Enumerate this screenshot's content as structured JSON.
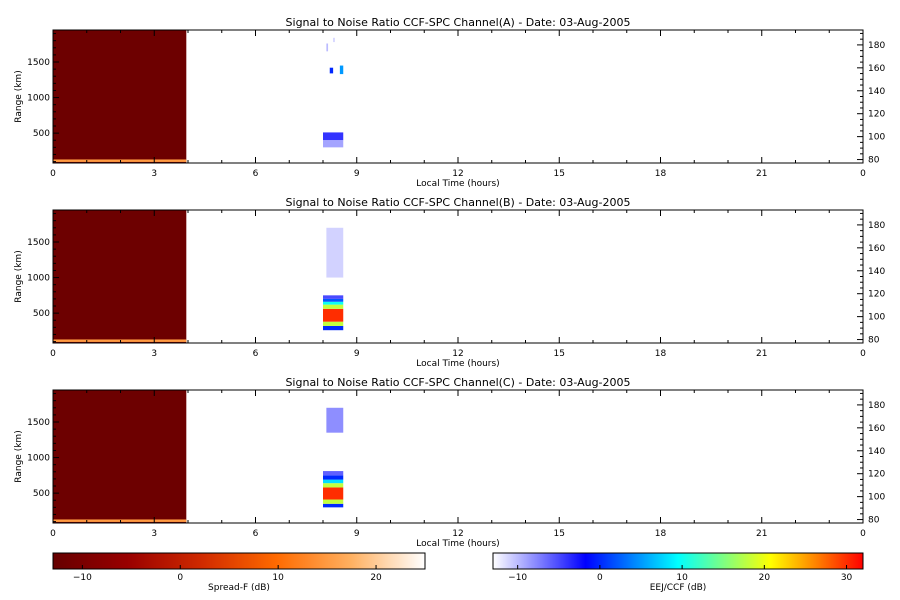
{
  "chart_data": [
    {
      "type": "heatmap",
      "title": "Signal to Noise Ratio CCF-SPC Channel(A) - Date: 03-Aug-2005",
      "xlabel": "Local Time (hours)",
      "ylabel": "Range (km)",
      "xlim": [
        0,
        24
      ],
      "ylim": [
        80,
        1950
      ],
      "right_ylim": [
        77,
        193
      ],
      "x_ticks": [
        "0",
        "3",
        "6",
        "9",
        "12",
        "15",
        "18",
        "21",
        "0"
      ],
      "x_tick_values": [
        0,
        3,
        6,
        9,
        12,
        15,
        18,
        21,
        24
      ],
      "y_ticks": [
        500,
        1000,
        1500
      ],
      "right_y_ticks": [
        80,
        100,
        120,
        140,
        160,
        180
      ],
      "spread_f_block": {
        "x": [
          0,
          3.95
        ],
        "range_km": [
          80,
          1950
        ],
        "value_db": -12
      },
      "spread_f_echo_band": {
        "range_km": [
          95,
          130
        ],
        "value_db": 15
      },
      "eej_ccf_echoes": [
        {
          "x": [
            8.0,
            8.6
          ],
          "range_km": [
            400,
            510
          ],
          "value_db": -4
        },
        {
          "x": [
            8.0,
            8.6
          ],
          "range_km": [
            300,
            400
          ],
          "value_db": -9
        },
        {
          "x": [
            8.5,
            8.6
          ],
          "range_km": [
            1330,
            1450
          ],
          "value_db": 5
        },
        {
          "x": [
            8.2,
            8.3
          ],
          "range_km": [
            1340,
            1420
          ],
          "value_db": 0
        },
        {
          "x": [
            8.1,
            8.15
          ],
          "range_km": [
            1650,
            1760
          ],
          "value_db": -10
        },
        {
          "x": [
            8.3,
            8.35
          ],
          "range_km": [
            1780,
            1840
          ],
          "value_db": -11
        }
      ]
    },
    {
      "type": "heatmap",
      "title": "Signal to Noise Ratio CCF-SPC Channel(B) - Date: 03-Aug-2005",
      "xlabel": "Local Time (hours)",
      "ylabel": "Range (km)",
      "xlim": [
        0,
        24
      ],
      "ylim": [
        80,
        1950
      ],
      "right_ylim": [
        77,
        193
      ],
      "x_ticks": [
        "0",
        "3",
        "6",
        "9",
        "12",
        "15",
        "18",
        "21",
        "0"
      ],
      "x_tick_values": [
        0,
        3,
        6,
        9,
        12,
        15,
        18,
        21,
        24
      ],
      "y_ticks": [
        500,
        1000,
        1500
      ],
      "right_y_ticks": [
        80,
        100,
        120,
        140,
        160,
        180
      ],
      "spread_f_block": {
        "x": [
          0,
          3.95
        ],
        "range_km": [
          80,
          1950
        ],
        "value_db": -12
      },
      "spread_f_echo_band": {
        "range_km": [
          95,
          130
        ],
        "value_db": 15
      },
      "eej_ccf_echoes": [
        {
          "x": [
            8.0,
            8.6
          ],
          "range_km": [
            260,
            320
          ],
          "value_db": 0
        },
        {
          "x": [
            8.0,
            8.6
          ],
          "range_km": [
            320,
            380
          ],
          "value_db": 18
        },
        {
          "x": [
            8.0,
            8.6
          ],
          "range_km": [
            380,
            560
          ],
          "value_db": 30
        },
        {
          "x": [
            8.0,
            8.6
          ],
          "range_km": [
            560,
            620
          ],
          "value_db": 18
        },
        {
          "x": [
            8.0,
            8.6
          ],
          "range_km": [
            620,
            660
          ],
          "value_db": 10
        },
        {
          "x": [
            8.0,
            8.6
          ],
          "range_km": [
            660,
            700
          ],
          "value_db": 2
        },
        {
          "x": [
            8.0,
            8.6
          ],
          "range_km": [
            700,
            750
          ],
          "value_db": -5
        },
        {
          "x": [
            8.1,
            8.6
          ],
          "range_km": [
            1000,
            1700
          ],
          "value_db": -11
        }
      ]
    },
    {
      "type": "heatmap",
      "title": "Signal to Noise Ratio CCF-SPC Channel(C) - Date: 03-Aug-2005",
      "xlabel": "Local Time (hours)",
      "ylabel": "Range (km)",
      "xlim": [
        0,
        24
      ],
      "ylim": [
        80,
        1950
      ],
      "right_ylim": [
        77,
        193
      ],
      "x_ticks": [
        "0",
        "3",
        "6",
        "9",
        "12",
        "15",
        "18",
        "21",
        "0"
      ],
      "x_tick_values": [
        0,
        3,
        6,
        9,
        12,
        15,
        18,
        21,
        24
      ],
      "y_ticks": [
        500,
        1000,
        1500
      ],
      "right_y_ticks": [
        80,
        100,
        120,
        140,
        160,
        180
      ],
      "spread_f_block": {
        "x": [
          0,
          3.95
        ],
        "range_km": [
          80,
          1950
        ],
        "value_db": -12
      },
      "spread_f_echo_band": {
        "range_km": [
          95,
          130
        ],
        "value_db": 15
      },
      "eej_ccf_echoes": [
        {
          "x": [
            8.0,
            8.6
          ],
          "range_km": [
            300,
            350
          ],
          "value_db": 0
        },
        {
          "x": [
            8.0,
            8.6
          ],
          "range_km": [
            350,
            410
          ],
          "value_db": 18
        },
        {
          "x": [
            8.0,
            8.6
          ],
          "range_km": [
            410,
            580
          ],
          "value_db": 30
        },
        {
          "x": [
            8.0,
            8.6
          ],
          "range_km": [
            580,
            640
          ],
          "value_db": 18
        },
        {
          "x": [
            8.0,
            8.6
          ],
          "range_km": [
            640,
            690
          ],
          "value_db": 8
        },
        {
          "x": [
            8.0,
            8.6
          ],
          "range_km": [
            690,
            750
          ],
          "value_db": 0
        },
        {
          "x": [
            8.0,
            8.6
          ],
          "range_km": [
            750,
            810
          ],
          "value_db": -6
        },
        {
          "x": [
            8.1,
            8.6
          ],
          "range_km": [
            1350,
            1700
          ],
          "value_db": -8
        }
      ]
    }
  ],
  "colorbars": {
    "spread_f": {
      "label": "Spread-F (dB)",
      "range": [
        -13,
        25
      ],
      "ticks": [
        -10,
        0,
        10,
        20
      ],
      "tick_labels": [
        "−10",
        "0",
        "10",
        "20"
      ],
      "colors": [
        "#660000",
        "#990000",
        "#d02a00",
        "#ff6a00",
        "#ffb060",
        "#ffffff"
      ]
    },
    "eej_ccf": {
      "label": "EEJ/CCF (dB)",
      "range": [
        -13,
        32
      ],
      "ticks": [
        -10,
        0,
        10,
        20,
        30
      ],
      "tick_labels": [
        "−10",
        "0",
        "10",
        "20",
        "30"
      ],
      "colors": [
        "#ffffff",
        "#0000ff",
        "#00ffff",
        "#ffff00",
        "#ff0000"
      ]
    }
  }
}
